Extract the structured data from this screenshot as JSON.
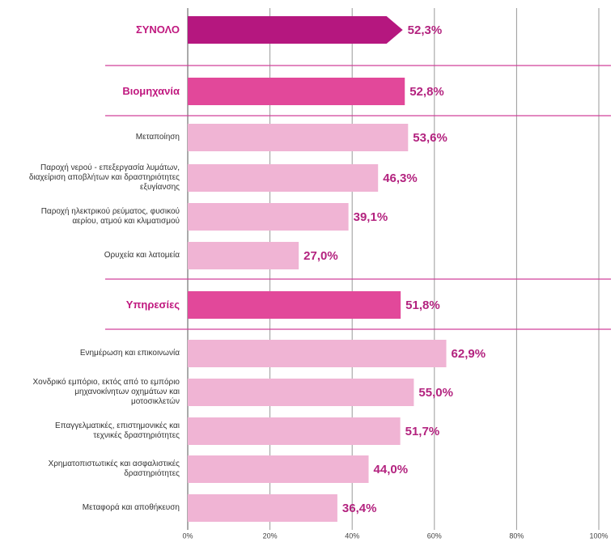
{
  "chart_data": {
    "type": "bar",
    "orientation": "horizontal",
    "categories": [
      "ΣΥΝΟΛΟ",
      "Βιομηχανία",
      "Μεταποίηση",
      "Παροχή νερού - επεξεργασία λυμάτων, διαχείριση αποβλήτων και δραστηριότητες εξυγίανσης",
      "Παροχή ηλεκτρικού ρεύματος, φυσικού αερίου, ατμού και κλιματισμού",
      "Ορυχεία και λατομεία",
      "Υπηρεσίες",
      "Ενημέρωση και επικοινωνία",
      "Χονδρικό εμπόριο, εκτός από το εμπόριο μηχανοκίνητων οχημάτων και μοτοσικλετών",
      "Επαγγελματικές, επιστημονικές και τεχνικές δραστηριότητες",
      "Χρηματοπιστωτικές και ασφαλιστικές δραστηριότητες",
      "Μεταφορά και αποθήκευση"
    ],
    "values": [
      52.3,
      52.8,
      53.6,
      46.3,
      39.1,
      27.0,
      51.8,
      62.9,
      55.0,
      51.7,
      44.0,
      36.4
    ],
    "value_labels": [
      "52,3%",
      "52,8%",
      "53,6%",
      "46,3%",
      "39,1%",
      "27,0%",
      "51,8%",
      "62,9%",
      "55,0%",
      "51,7%",
      "44,0%",
      "36,4%"
    ],
    "levels": [
      "total",
      "group",
      "sub",
      "sub",
      "sub",
      "sub",
      "group",
      "sub",
      "sub",
      "sub",
      "sub",
      "sub"
    ],
    "colors": {
      "total": "#b5177f",
      "group": "#e2489a",
      "sub": "#f0b4d4"
    },
    "xlim": [
      0,
      100
    ],
    "xticks": [
      {
        "value": 0,
        "label": "0%"
      },
      {
        "value": 20,
        "label": "20%"
      },
      {
        "value": 40,
        "label": "40%"
      },
      {
        "value": 60,
        "label": "60%"
      },
      {
        "value": 80,
        "label": "80%"
      },
      {
        "value": 100,
        "label": "100%"
      }
    ],
    "grid": true
  }
}
